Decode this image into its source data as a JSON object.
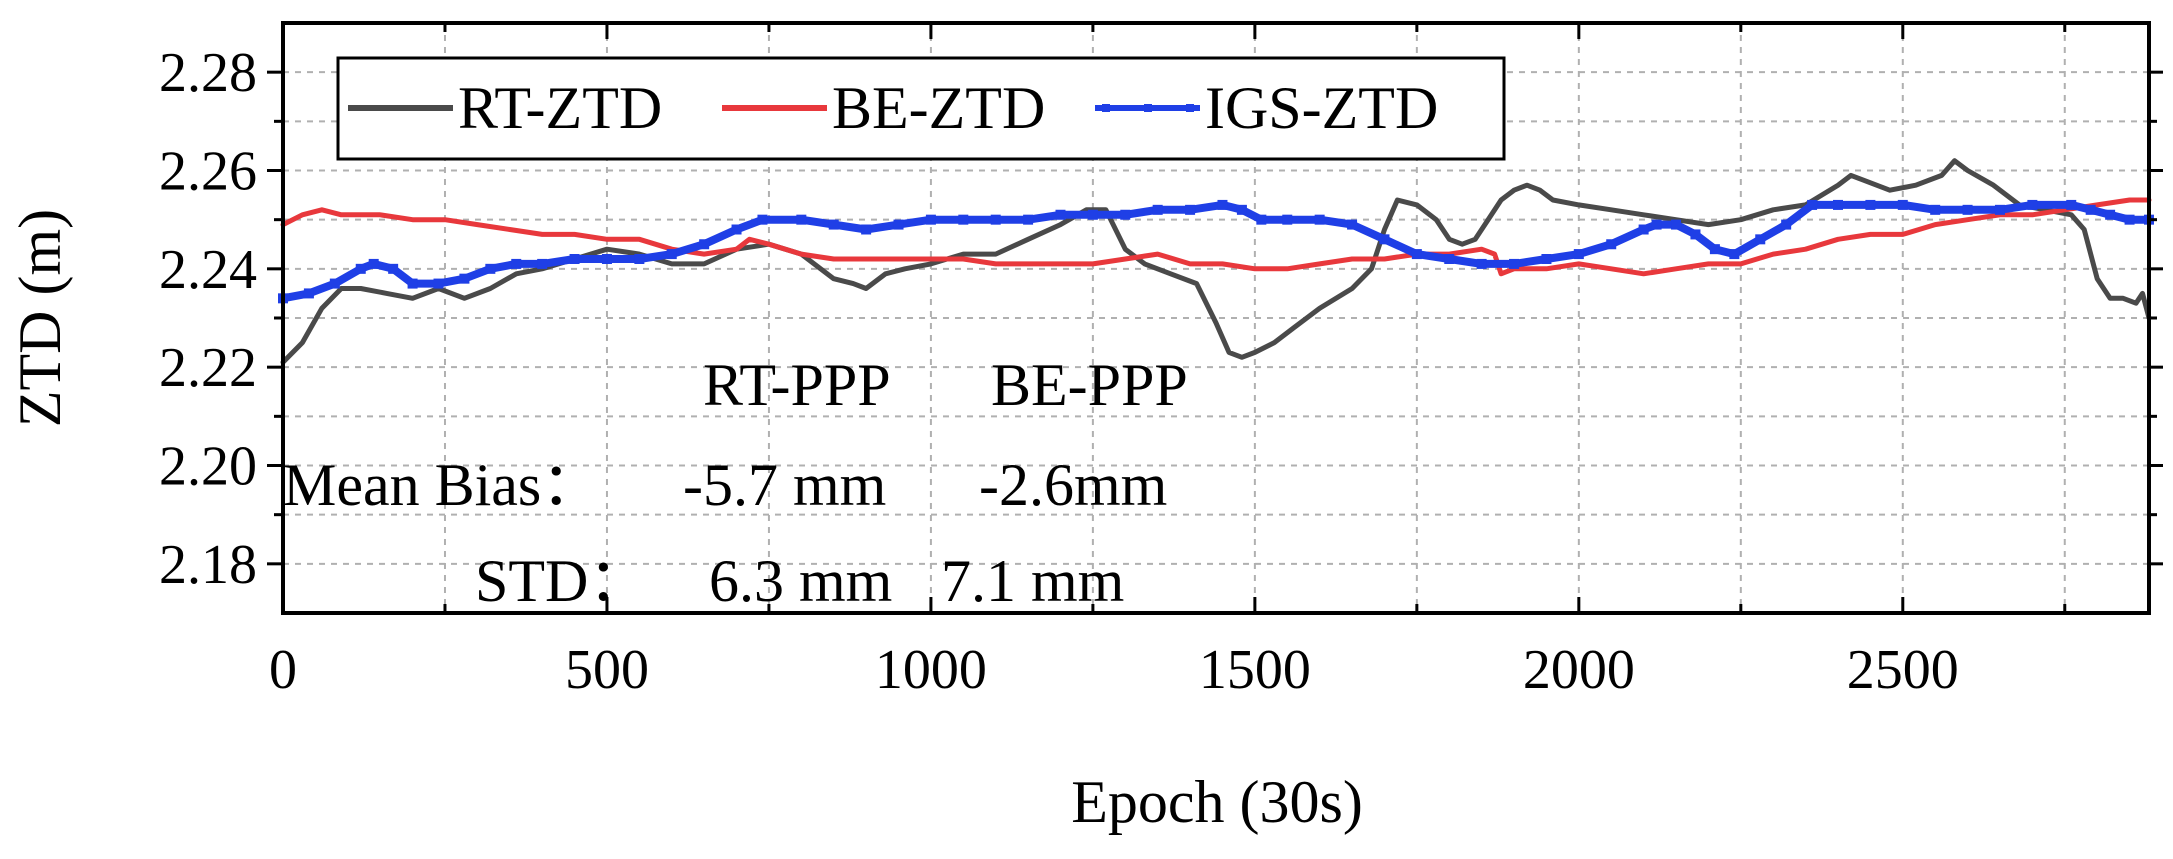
{
  "chart_data": {
    "type": "line",
    "xlabel": "Epoch (30s)",
    "ylabel": "ZTD (m)",
    "xlim": [
      0,
      2880
    ],
    "ylim": [
      2.17,
      2.29
    ],
    "xticks": [
      0,
      500,
      1000,
      1500,
      2000,
      2500
    ],
    "xtick_labels": [
      "0",
      "500",
      "1000",
      "1500",
      "2000",
      "2500"
    ],
    "xminor": [
      250,
      750,
      1250,
      1750,
      2250,
      2750
    ],
    "yticks": [
      2.18,
      2.2,
      2.22,
      2.24,
      2.26,
      2.28
    ],
    "ytick_labels": [
      "2.18",
      "2.20",
      "2.22",
      "2.24",
      "2.26",
      "2.28"
    ],
    "yminor": [
      2.19,
      2.21,
      2.23,
      2.25,
      2.27
    ],
    "grid": true,
    "legend_position": "top-left",
    "series": [
      {
        "name": "RT-ZTD",
        "color": "#4a4a4a",
        "marker": "none",
        "x": [
          0,
          30,
          60,
          90,
          120,
          160,
          200,
          240,
          280,
          320,
          360,
          400,
          450,
          500,
          550,
          600,
          650,
          700,
          750,
          800,
          850,
          880,
          900,
          930,
          960,
          1000,
          1050,
          1100,
          1150,
          1200,
          1240,
          1270,
          1300,
          1330,
          1370,
          1410,
          1440,
          1460,
          1480,
          1500,
          1530,
          1560,
          1600,
          1650,
          1680,
          1700,
          1720,
          1750,
          1780,
          1800,
          1820,
          1840,
          1860,
          1880,
          1900,
          1920,
          1940,
          1960,
          2000,
          2050,
          2100,
          2150,
          2200,
          2250,
          2300,
          2350,
          2400,
          2420,
          2440,
          2480,
          2520,
          2560,
          2580,
          2600,
          2640,
          2680,
          2720,
          2760,
          2780,
          2800,
          2820,
          2840,
          2860,
          2870,
          2880
        ],
        "y": [
          2.221,
          2.225,
          2.232,
          2.236,
          2.236,
          2.235,
          2.234,
          2.236,
          2.234,
          2.236,
          2.239,
          2.24,
          2.242,
          2.244,
          2.243,
          2.241,
          2.241,
          2.244,
          2.245,
          2.243,
          2.238,
          2.237,
          2.236,
          2.239,
          2.24,
          2.241,
          2.243,
          2.243,
          2.246,
          2.249,
          2.252,
          2.252,
          2.244,
          2.241,
          2.239,
          2.237,
          2.229,
          2.223,
          2.222,
          2.223,
          2.225,
          2.228,
          2.232,
          2.236,
          2.24,
          2.248,
          2.254,
          2.253,
          2.25,
          2.246,
          2.245,
          2.246,
          2.25,
          2.254,
          2.256,
          2.257,
          2.256,
          2.254,
          2.253,
          2.252,
          2.251,
          2.25,
          2.249,
          2.25,
          2.252,
          2.253,
          2.257,
          2.259,
          2.258,
          2.256,
          2.257,
          2.259,
          2.262,
          2.26,
          2.257,
          2.253,
          2.252,
          2.251,
          2.248,
          2.238,
          2.234,
          2.234,
          2.233,
          2.235,
          2.23
        ]
      },
      {
        "name": "BE-ZTD",
        "color": "#e8383c",
        "marker": "none",
        "x": [
          0,
          30,
          60,
          90,
          150,
          200,
          250,
          300,
          350,
          400,
          450,
          500,
          550,
          600,
          650,
          700,
          720,
          750,
          800,
          850,
          900,
          950,
          1000,
          1050,
          1100,
          1150,
          1200,
          1250,
          1300,
          1350,
          1400,
          1450,
          1500,
          1550,
          1600,
          1650,
          1700,
          1750,
          1800,
          1850,
          1870,
          1880,
          1900,
          1950,
          2000,
          2050,
          2100,
          2150,
          2200,
          2250,
          2300,
          2350,
          2400,
          2450,
          2500,
          2550,
          2600,
          2650,
          2700,
          2750,
          2800,
          2850,
          2880
        ],
        "y": [
          2.249,
          2.251,
          2.252,
          2.251,
          2.251,
          2.25,
          2.25,
          2.249,
          2.248,
          2.247,
          2.247,
          2.246,
          2.246,
          2.244,
          2.243,
          2.244,
          2.246,
          2.245,
          2.243,
          2.242,
          2.242,
          2.242,
          2.242,
          2.242,
          2.241,
          2.241,
          2.241,
          2.241,
          2.242,
          2.243,
          2.241,
          2.241,
          2.24,
          2.24,
          2.241,
          2.242,
          2.242,
          2.243,
          2.243,
          2.244,
          2.243,
          2.239,
          2.24,
          2.24,
          2.241,
          2.24,
          2.239,
          2.24,
          2.241,
          2.241,
          2.243,
          2.244,
          2.246,
          2.247,
          2.247,
          2.249,
          2.25,
          2.251,
          2.251,
          2.252,
          2.253,
          2.254,
          2.254
        ]
      },
      {
        "name": "IGS-ZTD",
        "color": "#1f3fe6",
        "marker": "square",
        "x": [
          0,
          40,
          80,
          120,
          140,
          170,
          200,
          240,
          280,
          320,
          360,
          400,
          450,
          500,
          550,
          600,
          650,
          700,
          740,
          800,
          850,
          900,
          950,
          1000,
          1050,
          1100,
          1150,
          1200,
          1250,
          1300,
          1350,
          1400,
          1450,
          1480,
          1510,
          1550,
          1600,
          1650,
          1700,
          1750,
          1800,
          1850,
          1900,
          1950,
          2000,
          2050,
          2100,
          2120,
          2150,
          2180,
          2210,
          2240,
          2280,
          2320,
          2360,
          2400,
          2450,
          2500,
          2550,
          2600,
          2650,
          2700,
          2760,
          2790,
          2820,
          2850,
          2880
        ],
        "y": [
          2.234,
          2.235,
          2.237,
          2.24,
          2.241,
          2.24,
          2.237,
          2.237,
          2.238,
          2.24,
          2.241,
          2.241,
          2.242,
          2.242,
          2.242,
          2.243,
          2.245,
          2.248,
          2.25,
          2.25,
          2.249,
          2.248,
          2.249,
          2.25,
          2.25,
          2.25,
          2.25,
          2.251,
          2.251,
          2.251,
          2.252,
          2.252,
          2.253,
          2.252,
          2.25,
          2.25,
          2.25,
          2.249,
          2.246,
          2.243,
          2.242,
          2.241,
          2.241,
          2.242,
          2.243,
          2.245,
          2.248,
          2.249,
          2.249,
          2.247,
          2.244,
          2.243,
          2.246,
          2.249,
          2.253,
          2.253,
          2.253,
          2.253,
          2.252,
          2.252,
          2.252,
          2.253,
          2.253,
          2.252,
          2.251,
          2.25,
          2.25
        ]
      }
    ],
    "annotations": {
      "header_rt": "RT-PPP",
      "header_be": "BE-PPP",
      "row1_label": "Mean Bias：",
      "row1_rt": "-5.7 mm",
      "row1_be": "-2.6mm",
      "row2_label": "STD：",
      "row2_rt": "6.3 mm",
      "row2_be": "7.1 mm"
    }
  }
}
